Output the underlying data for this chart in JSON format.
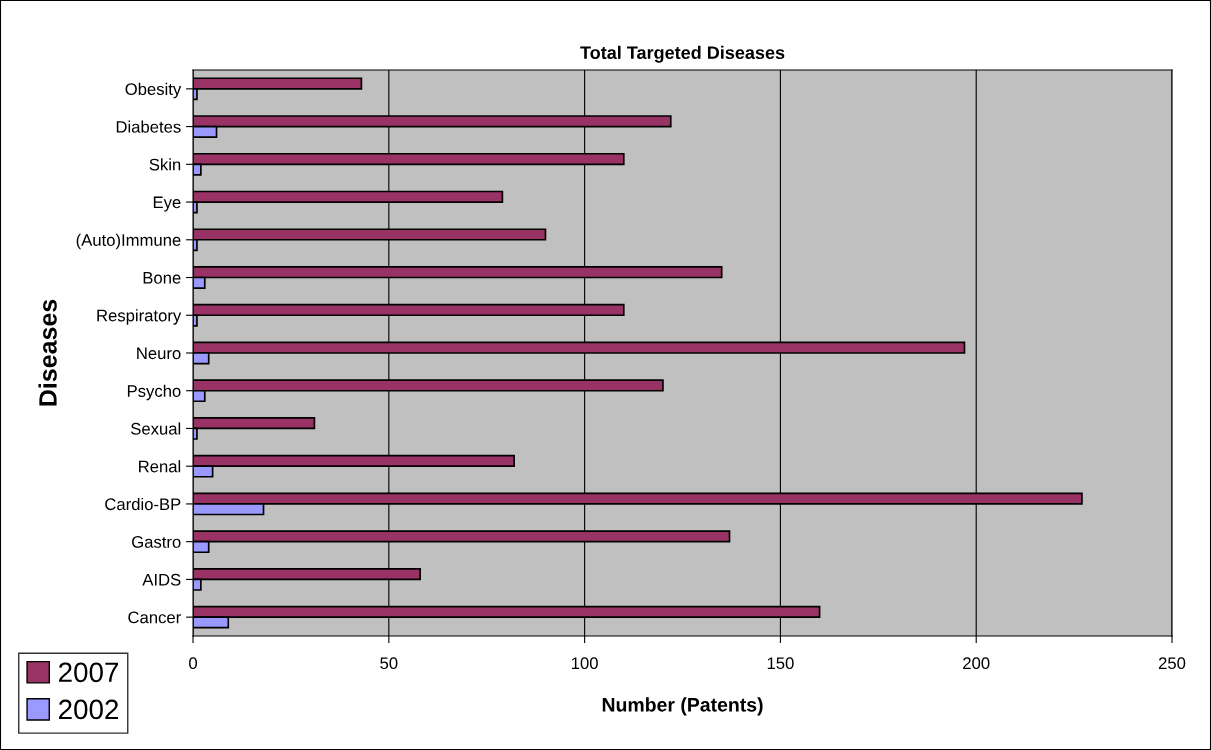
{
  "chart_data": {
    "type": "bar",
    "orientation": "horizontal",
    "title": "Total Targeted Diseases",
    "xlabel": "Number (Patents)",
    "ylabel": "Diseases",
    "categories": [
      "Obesity",
      "Diabetes",
      "Skin",
      "Eye",
      "(Auto)Immune",
      "Bone",
      "Respiratory",
      "Neuro",
      "Psycho",
      "Sexual",
      "Renal",
      "Cardio-BP",
      "Gastro",
      "AIDS",
      "Cancer"
    ],
    "series": [
      {
        "name": "2007",
        "color": "#993366",
        "values": [
          43,
          122,
          110,
          79,
          90,
          135,
          110,
          197,
          120,
          31,
          82,
          227,
          137,
          58,
          160
        ]
      },
      {
        "name": "2002",
        "color": "#9999ff",
        "values": [
          1,
          6,
          2,
          1,
          1,
          3,
          1,
          4,
          3,
          1,
          5,
          18,
          4,
          2,
          9
        ]
      }
    ],
    "xlim": [
      0,
      250
    ],
    "xticks": [
      0,
      50,
      100,
      150,
      200,
      250
    ],
    "grid": "x",
    "legend": "bottom left"
  }
}
